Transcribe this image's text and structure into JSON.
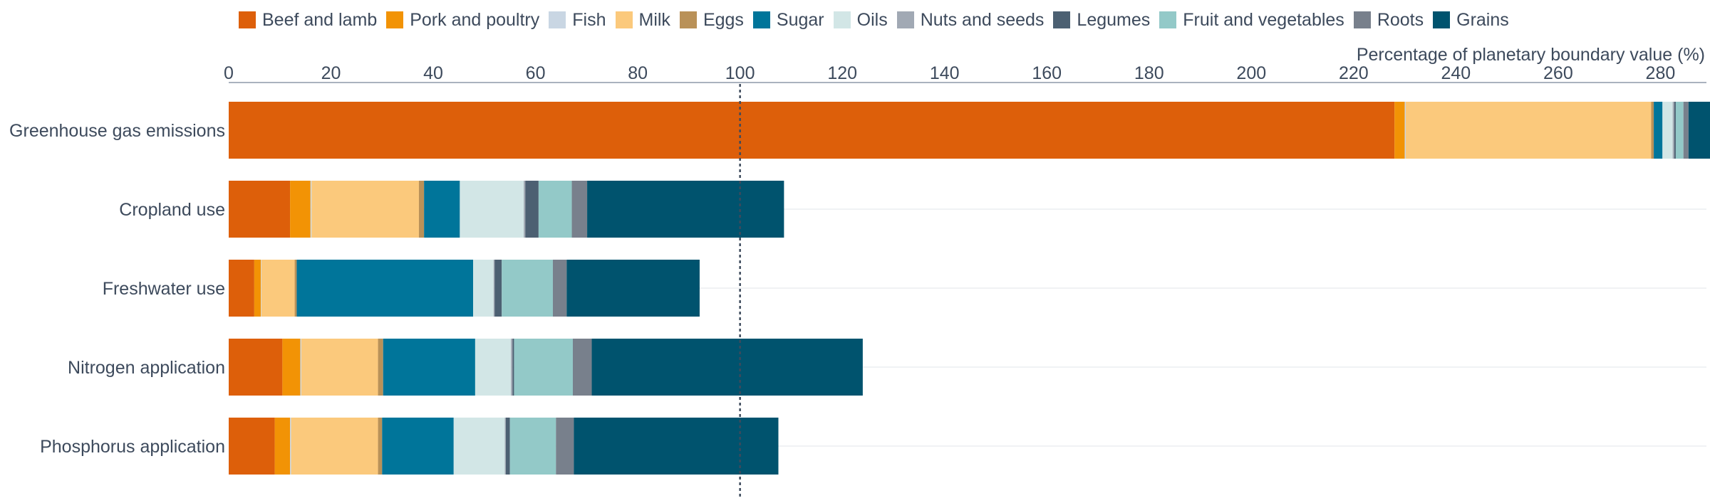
{
  "chart_data": {
    "type": "bar",
    "orientation": "horizontal",
    "stacked": true,
    "xlabel": "Percentage of planetary boundary value (%)",
    "xlim": [
      0,
      289
    ],
    "xticks": [
      0,
      20,
      40,
      60,
      80,
      100,
      120,
      140,
      160,
      180,
      200,
      220,
      240,
      260,
      280
    ],
    "reference_line": 100,
    "grid": "horizontal",
    "legend_position": "top",
    "categories": [
      "Greenhouse gas emissions",
      "Cropland use",
      "Freshwater use",
      "Nitrogen application",
      "Phosphorus application"
    ],
    "series": [
      {
        "name": "Beef and lamb",
        "color": "#dd5f0a",
        "values": [
          228,
          12,
          5,
          10.5,
          9
        ]
      },
      {
        "name": "Pork and poultry",
        "color": "#f29305",
        "values": [
          2,
          4,
          1.3,
          3.5,
          3
        ]
      },
      {
        "name": "Fish",
        "color": "#c9d6e3",
        "values": [
          0.2,
          0.2,
          0.1,
          0.2,
          0.2
        ]
      },
      {
        "name": "Milk",
        "color": "#fbc97c",
        "values": [
          48,
          21,
          6.5,
          15,
          17
        ]
      },
      {
        "name": "Eggs",
        "color": "#b99158",
        "values": [
          0.5,
          1,
          0.4,
          1,
          0.8
        ]
      },
      {
        "name": "Sugar",
        "color": "#00759a",
        "values": [
          1.7,
          7,
          34.5,
          18,
          14
        ]
      },
      {
        "name": "Oils",
        "color": "#d2e6e6",
        "values": [
          2,
          12.5,
          4,
          7,
          10
        ]
      },
      {
        "name": "Nuts and seeds",
        "color": "#a1a9b4",
        "values": [
          0.3,
          0.3,
          0.2,
          0.3,
          0.2
        ]
      },
      {
        "name": "Legumes",
        "color": "#4c6072",
        "values": [
          0.3,
          2.6,
          1.4,
          0.3,
          0.8
        ]
      },
      {
        "name": "Fruit and vegetables",
        "color": "#93c9c8",
        "values": [
          1.5,
          6.5,
          10,
          11.5,
          9
        ]
      },
      {
        "name": "Roots",
        "color": "#78808c",
        "values": [
          1,
          3,
          2.7,
          3.7,
          3.5
        ]
      },
      {
        "name": "Grains",
        "color": "#00536e",
        "values": [
          4.5,
          38.5,
          26,
          53,
          40
        ]
      }
    ]
  }
}
